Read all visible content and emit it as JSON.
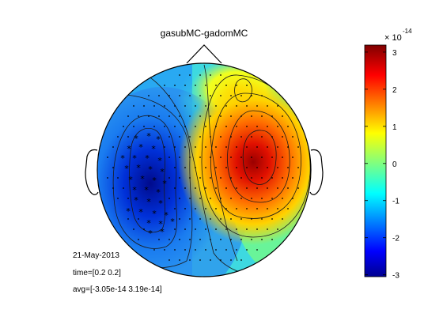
{
  "figure": {
    "title": "gasubMC-gadomMC",
    "date": "21-May-2013",
    "time_line": "time=[0.2 0.2]",
    "avg_line": "avg=[-3.05e-14 3.19e-14]"
  },
  "chart_data": {
    "type": "heatmap",
    "plot": "topographic scalp map",
    "title": "gasubMC-gadomMC",
    "colormap": "jet",
    "color_range": [
      -3.05e-14,
      3.19e-14
    ],
    "colorbar": {
      "exponent_label": "× 10",
      "exponent": "-14",
      "ticks": [
        3,
        2,
        1,
        0,
        -1,
        -2,
        -3
      ]
    },
    "extrema": [
      {
        "sign": "negative",
        "value": -3.05e-14,
        "region": "left temporal"
      },
      {
        "sign": "positive",
        "value": 3.19e-14,
        "region": "right central"
      }
    ],
    "markers": {
      "sensor_symbol": "dot",
      "significant_symbol": "asterisk",
      "significant_region": "left temporal cluster"
    },
    "contours": true
  }
}
